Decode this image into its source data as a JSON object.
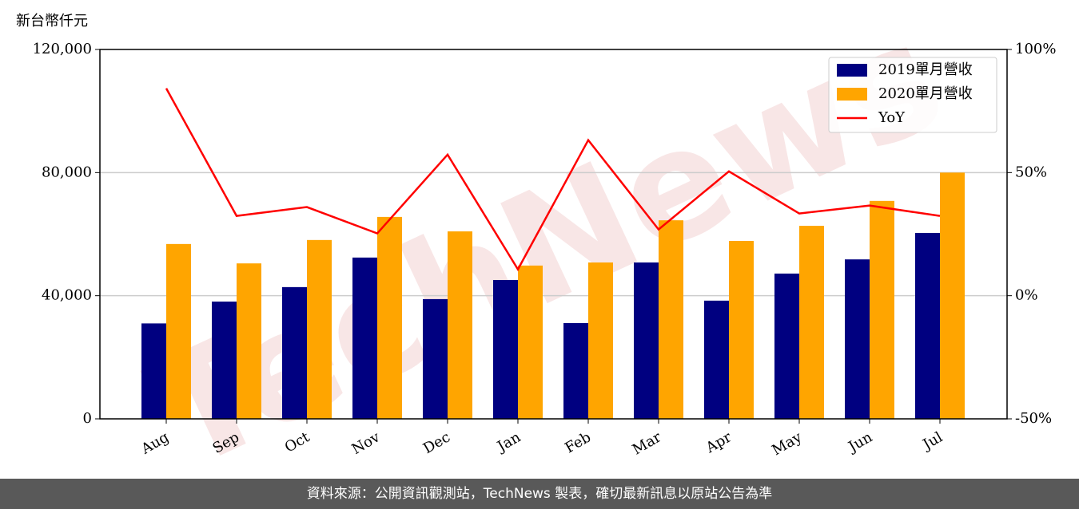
{
  "chart_data": {
    "type": "bar",
    "y_label": "新台幣仟元",
    "watermark": "TechNews",
    "categories": [
      "Aug",
      "Sep",
      "Oct",
      "Nov",
      "Dec",
      "Jan",
      "Feb",
      "Mar",
      "Apr",
      "May",
      "Jun",
      "Jul"
    ],
    "series": [
      {
        "name": "2019單月營收",
        "type": "bar",
        "color": "#000080",
        "values": [
          31000,
          38100,
          42800,
          52400,
          38900,
          45100,
          31100,
          50800,
          38400,
          47200,
          51800,
          60400
        ]
      },
      {
        "name": "2020單月營收",
        "type": "bar",
        "color": "#ffa500",
        "values": [
          56800,
          50500,
          58100,
          65600,
          60900,
          49800,
          50800,
          64500,
          57800,
          62700,
          70800,
          80000
        ]
      },
      {
        "name": "YoY",
        "type": "line",
        "color": "#ff0000",
        "axis": "y2",
        "values": [
          84.2,
          32.4,
          36,
          25.3,
          57.3,
          10.7,
          63.2,
          26.9,
          50.5,
          33.4,
          36.6,
          32.4
        ]
      }
    ],
    "ylim": [
      0,
      120000
    ],
    "yticks": [
      0,
      {
        "value": 40000,
        "label": "40,000"
      },
      {
        "value": 80000,
        "label": "80,000"
      },
      {
        "value": 120000,
        "label": "120,000"
      }
    ],
    "y2lim": [
      -50,
      100
    ],
    "y2ticks": [
      {
        "value": -50,
        "label": "-50%"
      },
      {
        "value": 0,
        "label": "0%"
      },
      {
        "value": 50,
        "label": "50%"
      },
      {
        "value": 100,
        "label": "100%"
      }
    ],
    "grid": true,
    "legend": "upper right"
  },
  "footer": "資料來源：公開資訊觀測站，TechNews 製表，確切最新訊息以原站公告為準"
}
